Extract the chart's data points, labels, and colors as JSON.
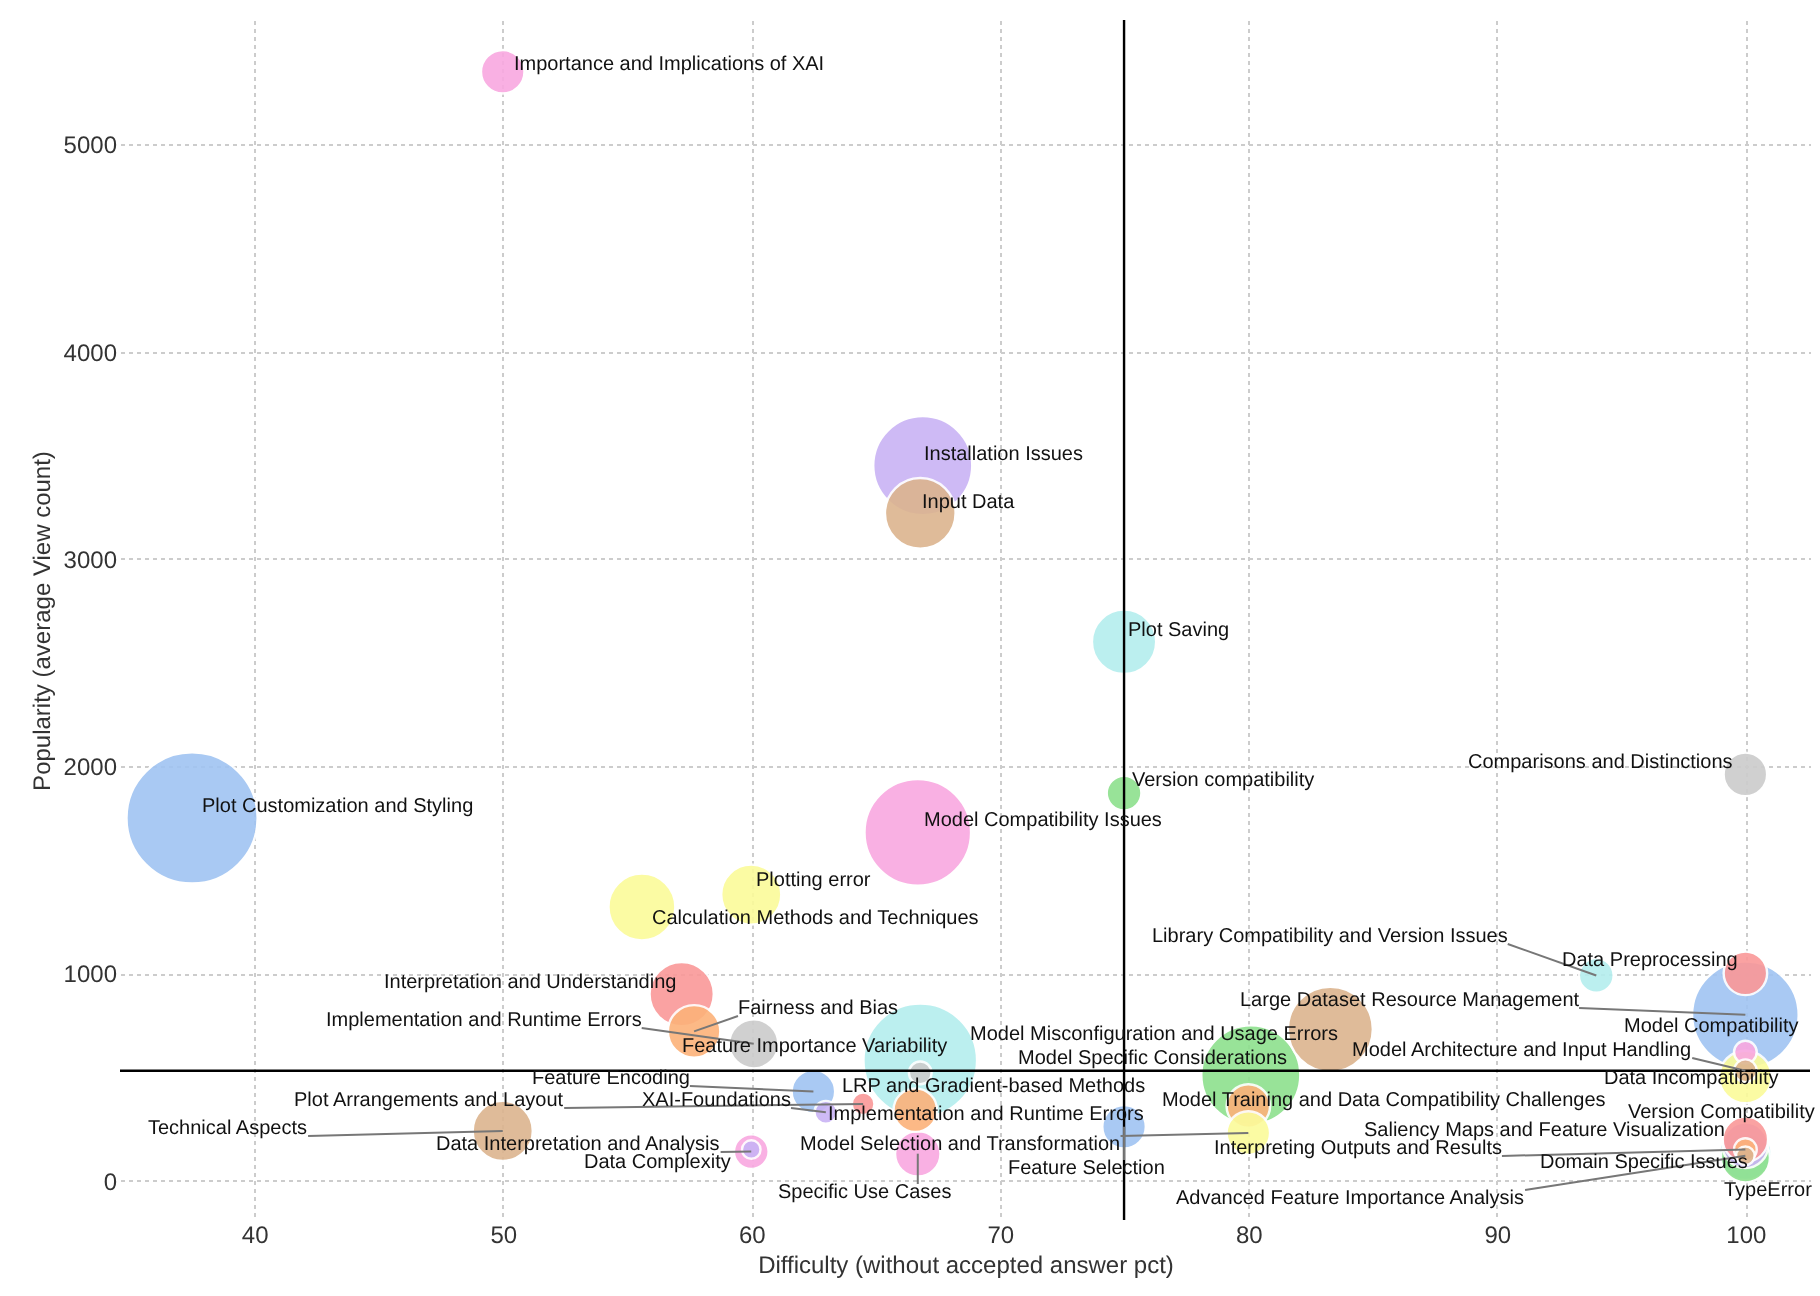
{
  "chart_data": {
    "type": "bubble",
    "xlabel": "Difficulty (without accepted answer pct)",
    "ylabel": "Popularity (average View count)",
    "x": [
      50,
      66.9,
      66.8,
      75,
      75,
      100,
      37.5,
      66.7,
      60,
      55.6,
      57.2,
      57.7,
      60.1,
      66.8,
      94,
      100,
      100,
      83.3,
      100,
      100,
      100,
      80.1,
      80,
      80,
      75,
      66.6,
      62.5,
      63,
      66.8,
      64.5,
      50,
      60,
      60,
      66.7,
      100,
      100,
      100,
      100,
      100,
      100
    ],
    "values": [
      5350,
      3450,
      3220,
      2600,
      1870,
      1960,
      1750,
      1680,
      1380,
      1320,
      900,
      720,
      660,
      580,
      990,
      1000,
      800,
      730,
      620,
      530,
      500,
      510,
      360,
      230,
      260,
      340,
      430,
      330,
      520,
      370,
      240,
      140,
      150,
      130,
      150,
      170,
      200,
      130,
      110,
      120
    ],
    "sizes": [
      0.11,
      0.57,
      0.29,
      0.24,
      0.07,
      0.11,
      1,
      0.66,
      0.21,
      0.26,
      0.24,
      0.16,
      0.14,
      0.75,
      0.07,
      0.11,
      0.66,
      0.42,
      0.03,
      0.03,
      0.16,
      0.57,
      0.11,
      0.11,
      0.11,
      0.11,
      0.11,
      0.03,
      0.03,
      0.03,
      0.21,
      0.07,
      0.02,
      0.12,
      0.03,
      0.12,
      0.12,
      0.16,
      0.14,
      0.02
    ],
    "colors": [
      "#f9a8e0",
      "#c9b3f5",
      "#dcb48e",
      "#b4eeee",
      "#8de08d",
      "#cccccc",
      "#a0c4f2",
      "#f9a8e0",
      "#fbfb9a",
      "#fbfb9a",
      "#fa9898",
      "#fcb27a",
      "#cccccc",
      "#b4eeee",
      "#b4eeee",
      "#fa9898",
      "#a0c4f2",
      "#dcb48e",
      "#f9a8e0",
      "#dcb48e",
      "#fbfb9a",
      "#8de08d",
      "#fcb27a",
      "#fbfb9a",
      "#a0c4f2",
      "#fcb27a",
      "#a0c4f2",
      "#c9b3f5",
      "#cccccc",
      "#fa9898",
      "#dcb48e",
      "#f9a8e0",
      "#c9b3f5",
      "#f9a8e0",
      "#fcb27a",
      "#c9b3f5",
      "#fa9898",
      "#b4eeee",
      "#8de08d",
      "#dcb48e"
    ],
    "annotations": [
      {
        "text": "Importance and Implications of XAI",
        "x": 50,
        "y": 5350
      },
      {
        "text": "Installation Issues",
        "x": 66.9,
        "y": 3450
      },
      {
        "text": "Input Data",
        "x": 66.8,
        "y": 3220
      },
      {
        "text": "Plot Saving",
        "x": 75,
        "y": 2600
      },
      {
        "text": "Version compatibility",
        "x": 75,
        "y": 1870
      },
      {
        "text": "Comparisons and Distinctions",
        "x": 100,
        "y": 1960
      },
      {
        "text": "Plot Customization and Styling",
        "x": 37.5,
        "y": 1750
      },
      {
        "text": "Model Compatibility Issues",
        "x": 66.7,
        "y": 1680
      },
      {
        "text": "Plotting error",
        "x": 60,
        "y": 1380
      },
      {
        "text": "Calculation Methods and Techniques",
        "x": 55.6,
        "y": 1320
      },
      {
        "text": "Interpretation and Understanding",
        "x": 57.2,
        "y": 900
      },
      {
        "text": "Fairness and Bias",
        "x": 57.7,
        "y": 720
      },
      {
        "text": "Implementation and Runtime Errors",
        "x": 60.1,
        "y": 660
      },
      {
        "text": "Feature Importance Variability",
        "x": 66.8,
        "y": 580
      },
      {
        "text": "Library Compatibility and Version Issues",
        "x": 94,
        "y": 990
      },
      {
        "text": "Data Preprocessing",
        "x": 100,
        "y": 1000
      },
      {
        "text": "Large Dataset Resource Management",
        "x": 100,
        "y": 800
      },
      {
        "text": "Model Misconfiguration and Usage Errors",
        "x": 83.3,
        "y": 730
      },
      {
        "text": "Model Compatibility",
        "x": 100,
        "y": 620
      },
      {
        "text": "Model Architecture and Input Handling",
        "x": 100,
        "y": 530
      },
      {
        "text": "Data Incompatibility",
        "x": 100,
        "y": 500
      },
      {
        "text": "Model Specific Considerations",
        "x": 80.1,
        "y": 510
      },
      {
        "text": "Model Training and Data Compatibility Challenges",
        "x": 80,
        "y": 360
      },
      {
        "text": "Model Selection and Transformation",
        "x": 80,
        "y": 230
      },
      {
        "text": "Feature Selection",
        "x": 75,
        "y": 260
      },
      {
        "text": "Implementation and Runtime Errors",
        "x": 66.6,
        "y": 340
      },
      {
        "text": "Feature Encoding",
        "x": 62.5,
        "y": 430
      },
      {
        "text": "XAI-Foundations",
        "x": 63,
        "y": 330
      },
      {
        "text": "LRP and Gradient-based Methods",
        "x": 66.8,
        "y": 520
      },
      {
        "text": "Plot Arrangements and Layout",
        "x": 64.5,
        "y": 370
      },
      {
        "text": "Technical Aspects",
        "x": 50,
        "y": 240
      },
      {
        "text": "Data Interpretation and Analysis",
        "x": 60,
        "y": 140
      },
      {
        "text": "Data Complexity",
        "x": 60,
        "y": 150
      },
      {
        "text": "Specific Use Cases",
        "x": 66.7,
        "y": 130
      },
      {
        "text": "Interpreting Outputs and Results",
        "x": 100,
        "y": 150
      },
      {
        "text": "Saliency Maps and Feature Visualization",
        "x": 100,
        "y": 170
      },
      {
        "text": "Version Compatibility",
        "x": 100,
        "y": 200
      },
      {
        "text": "Domain Specific Issues",
        "x": 100,
        "y": 130
      },
      {
        "text": "TypeError",
        "x": 100,
        "y": 110
      },
      {
        "text": "Advanced Feature Importance Analysis",
        "x": 100,
        "y": 120
      }
    ],
    "ref_lines": [
      {
        "axis": "x",
        "value": 75
      },
      {
        "axis": "y",
        "value": 530
      }
    ],
    "xlim": [
      34.6,
      102.6
    ],
    "ylim": [
      -190,
      5600
    ],
    "xticks": [
      40,
      50,
      60,
      70,
      80,
      90,
      100
    ],
    "yticks": [
      0,
      1000,
      2000,
      3000,
      4000,
      5000
    ],
    "grid": true
  }
}
